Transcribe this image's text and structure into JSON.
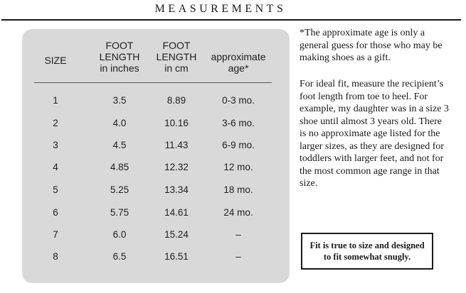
{
  "title": "MEASUREMENTS",
  "table": {
    "headers": {
      "size": "SIZE",
      "foot_inches": [
        "FOOT",
        "LENGTH",
        "in inches"
      ],
      "foot_cm": [
        "FOOT",
        "LENGTH",
        "in cm"
      ],
      "age": [
        "approximate",
        "age*"
      ]
    },
    "rows": [
      {
        "size": "1",
        "inches": "3.5",
        "cm": "8.89",
        "age": "0-3 mo."
      },
      {
        "size": "2",
        "inches": "4.0",
        "cm": "10.16",
        "age": "3-6 mo."
      },
      {
        "size": "3",
        "inches": "4.5",
        "cm": "11.43",
        "age": "6-9 mo."
      },
      {
        "size": "4",
        "inches": "4.85",
        "cm": "12.32",
        "age": "12 mo."
      },
      {
        "size": "5",
        "inches": "5.25",
        "cm": "13.34",
        "age": "18 mo."
      },
      {
        "size": "6",
        "inches": "5.75",
        "cm": "14.61",
        "age": "24 mo."
      },
      {
        "size": "7",
        "inches": "6.0",
        "cm": "15.24",
        "age": "–"
      },
      {
        "size": "8",
        "inches": "6.5",
        "cm": "16.51",
        "age": "–"
      }
    ]
  },
  "notes": {
    "age_note": "*The approximate age is only a general guess for those who may be making shoes as a gift.",
    "fit_note": "For ideal fit, measure the recipient’s foot length from toe to heel. For example, my daughter was in a size 3 shoe until almost 3 years old. There is no approximate age listed for the larger sizes, as they are designed for toddlers with larger feet, and not for the most common age range in that size.",
    "boxed_note": "Fit is true to size and designed to fit somewhat snugly."
  }
}
